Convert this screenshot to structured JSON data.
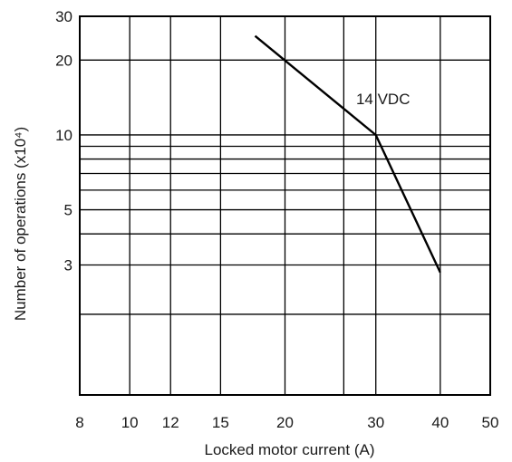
{
  "chart_data": {
    "type": "line",
    "x_scale": "log",
    "y_scale": "log",
    "xlabel": "Locked motor current (A)",
    "ylabel": "Number of operations (x10⁴)",
    "xlim": [
      8,
      50
    ],
    "ylim": [
      0.9,
      30
    ],
    "x_ticks": [
      8,
      10,
      12,
      15,
      20,
      30,
      40,
      50
    ],
    "x_tick_labels": [
      "8",
      "10",
      "12",
      "15",
      "20",
      "30",
      "40",
      "50"
    ],
    "x_gridlines": [
      10,
      12,
      15,
      20,
      26,
      30,
      40
    ],
    "y_ticks": [
      3,
      5,
      10,
      20,
      30
    ],
    "y_tick_labels": [
      "3",
      "5",
      "10",
      "20",
      "30"
    ],
    "y_gridlines": [
      1.9,
      3,
      4,
      5,
      6,
      7,
      8,
      9,
      10,
      20
    ],
    "grid": true,
    "series": [
      {
        "name": "14 VDC",
        "x": [
          17.5,
          30,
          40
        ],
        "y": [
          25,
          10,
          2.8
        ]
      }
    ],
    "annotations": [
      {
        "text": "14 VDC",
        "x": 30,
        "y": 14
      }
    ]
  }
}
